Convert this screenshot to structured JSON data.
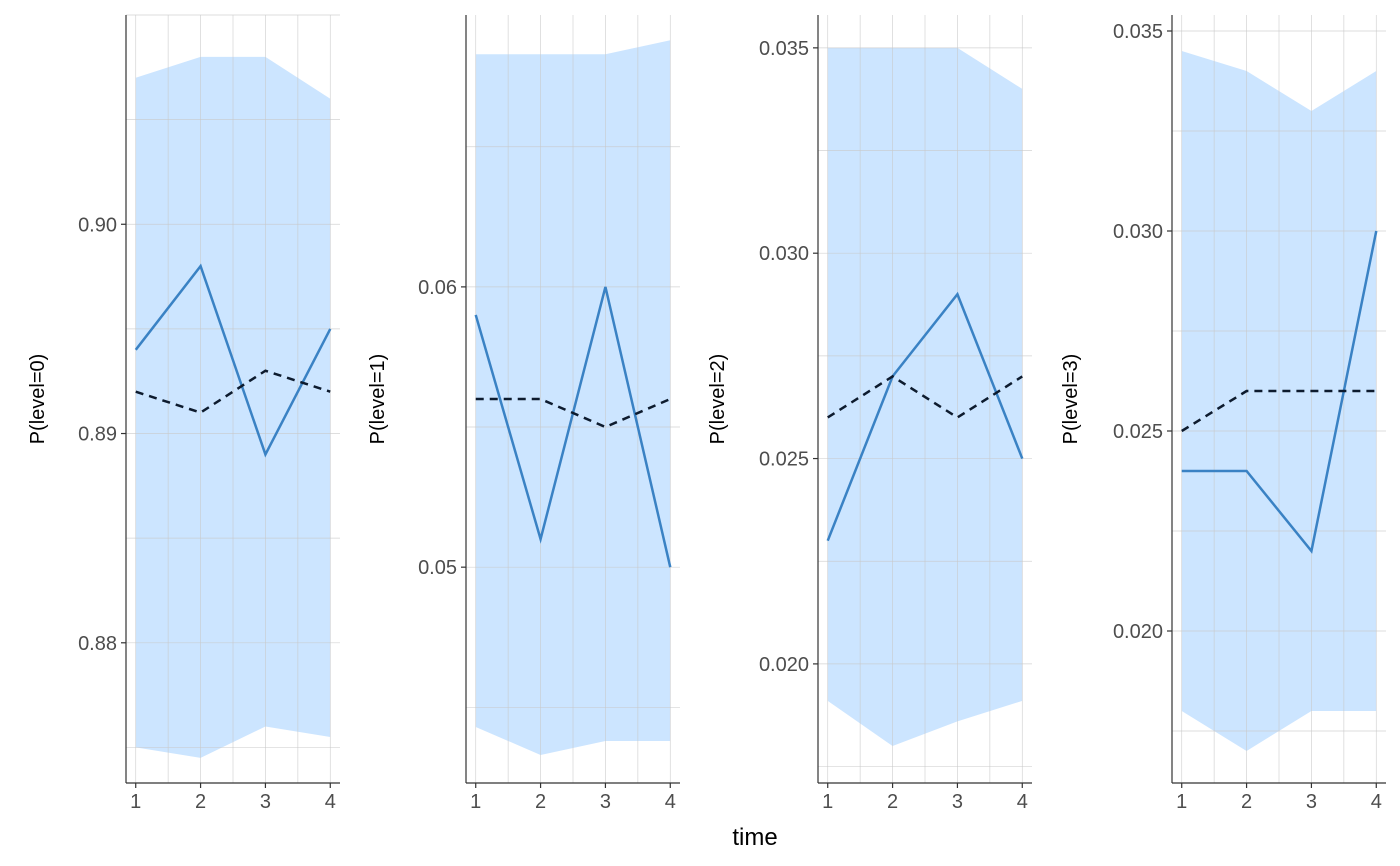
{
  "figure": {
    "xlabel": "time"
  },
  "colors": {
    "band": "#cce5ff",
    "observed_line": "#3a82c4",
    "expected_line": "#0d1b2e",
    "grid": "#c8c8c8",
    "axis": "#333333"
  },
  "chart_data": [
    {
      "type": "line",
      "ylabel": "P(level=0)",
      "x": [
        1,
        2,
        3,
        4
      ],
      "xlim": [
        0.85,
        4.15
      ],
      "ylim": [
        0.8733,
        0.91
      ],
      "y_ticks": [
        0.88,
        0.89,
        0.9
      ],
      "y_tick_labels": [
        "0.88",
        "0.89",
        "0.90"
      ],
      "grid": true,
      "band": {
        "lower": [
          0.875,
          0.8745,
          0.876,
          0.8755
        ],
        "upper": [
          0.907,
          0.908,
          0.908,
          0.906
        ]
      },
      "series": [
        {
          "style": "solid",
          "values": [
            0.894,
            0.898,
            0.889,
            0.895
          ]
        },
        {
          "style": "dashed",
          "values": [
            0.892,
            0.891,
            0.893,
            0.892
          ]
        }
      ]
    },
    {
      "type": "line",
      "ylabel": "P(level=1)",
      "x": [
        1,
        2,
        3,
        4
      ],
      "xlim": [
        0.85,
        4.15
      ],
      "ylim": [
        0.0423,
        0.0697
      ],
      "y_ticks": [
        0.05,
        0.06
      ],
      "y_tick_labels": [
        "0.05",
        "0.06"
      ],
      "grid": true,
      "band": {
        "lower": [
          0.0443,
          0.0433,
          0.0438,
          0.0438
        ],
        "upper": [
          0.0683,
          0.0683,
          0.0683,
          0.0688
        ]
      },
      "series": [
        {
          "style": "solid",
          "values": [
            0.059,
            0.051,
            0.06,
            0.05
          ]
        },
        {
          "style": "dashed",
          "values": [
            0.056,
            0.056,
            0.055,
            0.056
          ]
        }
      ]
    },
    {
      "type": "line",
      "ylabel": "P(level=2)",
      "x": [
        1,
        2,
        3,
        4
      ],
      "xlim": [
        0.85,
        4.15
      ],
      "ylim": [
        0.0171,
        0.0358
      ],
      "y_ticks": [
        0.02,
        0.025,
        0.03,
        0.035
      ],
      "y_tick_labels": [
        "0.020",
        "0.025",
        "0.030",
        "0.035"
      ],
      "grid": true,
      "band": {
        "lower": [
          0.0191,
          0.018,
          0.0186,
          0.0191
        ],
        "upper": [
          0.035,
          0.035,
          0.035,
          0.034
        ]
      },
      "series": [
        {
          "style": "solid",
          "values": [
            0.023,
            0.027,
            0.029,
            0.025
          ]
        },
        {
          "style": "dashed",
          "values": [
            0.026,
            0.027,
            0.026,
            0.027
          ]
        }
      ]
    },
    {
      "type": "line",
      "ylabel": "P(level=3)",
      "x": [
        1,
        2,
        3,
        4
      ],
      "xlim": [
        0.85,
        4.15
      ],
      "ylim": [
        0.0162,
        0.0354
      ],
      "y_ticks": [
        0.02,
        0.025,
        0.03,
        0.035
      ],
      "y_tick_labels": [
        "0.020",
        "0.025",
        "0.030",
        "0.035"
      ],
      "grid": true,
      "band": {
        "lower": [
          0.018,
          0.017,
          0.018,
          0.018
        ],
        "upper": [
          0.0345,
          0.034,
          0.033,
          0.034
        ]
      },
      "series": [
        {
          "style": "solid",
          "values": [
            0.024,
            0.024,
            0.022,
            0.03
          ]
        },
        {
          "style": "dashed",
          "values": [
            0.025,
            0.026,
            0.026,
            0.026
          ]
        }
      ]
    }
  ]
}
